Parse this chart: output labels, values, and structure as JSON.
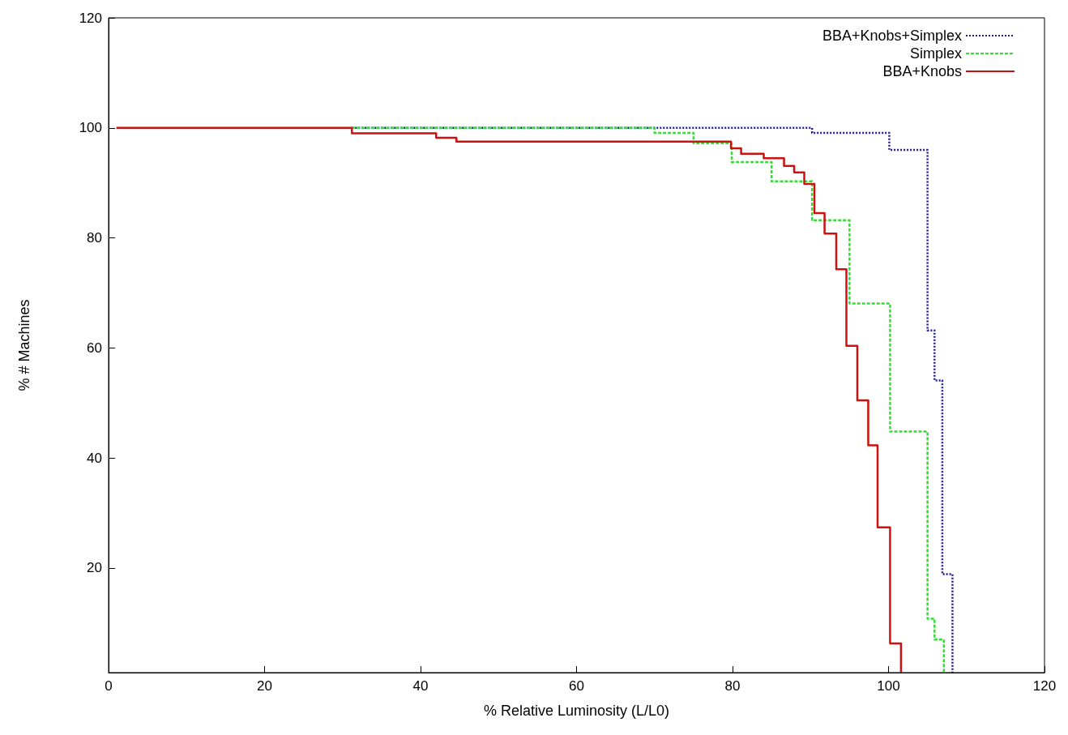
{
  "chart_data": {
    "type": "step",
    "xlabel": "% Relative Luminosity (L/L0)",
    "ylabel": "% # Machines",
    "xlim": [
      0,
      120
    ],
    "xticks": [
      0,
      20,
      40,
      60,
      80,
      100,
      120
    ],
    "ylim": [
      1,
      120
    ],
    "yticks": [
      20,
      40,
      60,
      80,
      100,
      120
    ],
    "grid": false,
    "legend": "top right",
    "marker": "none",
    "series": [
      {
        "name": "BBA+Knobs+Simplex",
        "color": "#1a1a99",
        "line_style": "dotted",
        "x": [
          31.2,
          90.2,
          100.1,
          105,
          105.9,
          106.9,
          108.2
        ],
        "values": [
          100,
          99.1,
          96,
          63.2,
          54.1,
          18.9,
          1
        ]
      },
      {
        "name": "Simplex",
        "color": "#33dd33",
        "line_style": "dashed",
        "x": [
          31.2,
          70,
          75,
          79.9,
          85,
          90.2,
          95,
          100.2,
          105,
          105.9,
          107.1
        ],
        "values": [
          100,
          99.1,
          97.2,
          93.8,
          90.3,
          83.2,
          68.1,
          44.8,
          10.8,
          7,
          1
        ]
      },
      {
        "name": "BBA+Knobs",
        "color": "#cc1111",
        "line_style": "solid",
        "x": [
          1,
          31.2,
          42,
          44.6,
          79.8,
          81.1,
          84,
          86.6,
          87.9,
          89.2,
          90.5,
          91.8,
          93.3,
          94.6,
          96,
          97.4,
          98.6,
          100.2,
          101.6
        ],
        "values": [
          100,
          99,
          98.2,
          97.5,
          96.3,
          95.3,
          94.5,
          93.1,
          91.9,
          89.8,
          84.5,
          80.8,
          74.3,
          60.4,
          50.5,
          42.3,
          27.4,
          6.3,
          1
        ]
      }
    ]
  }
}
